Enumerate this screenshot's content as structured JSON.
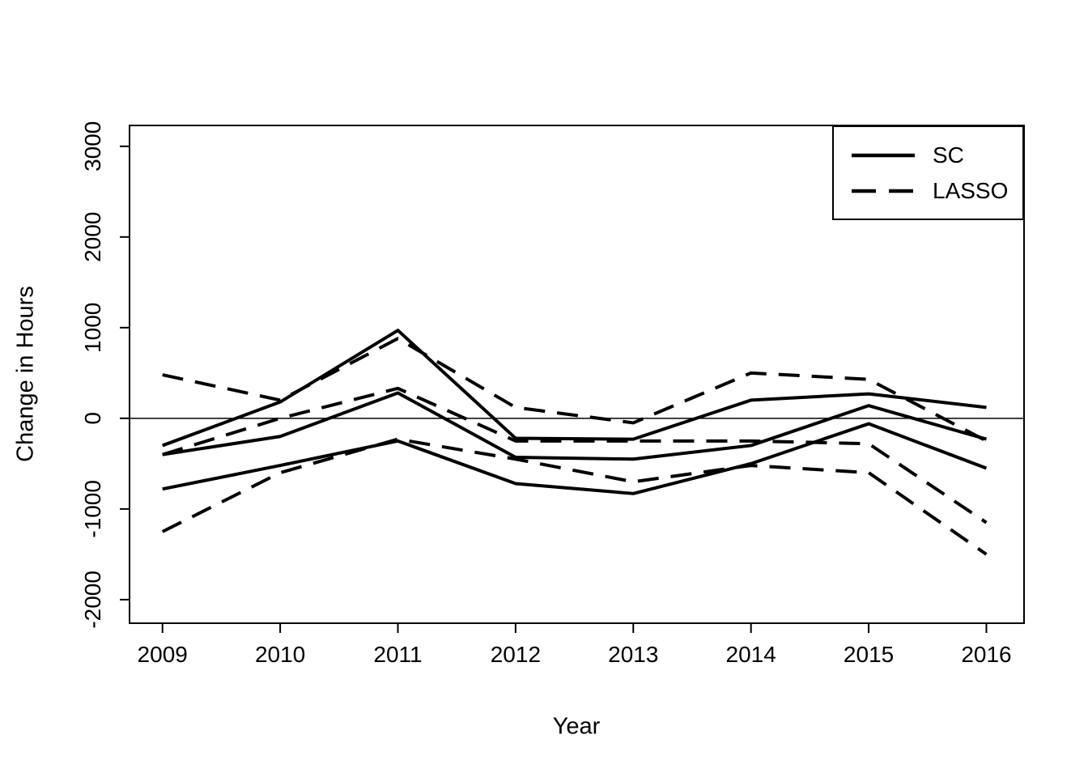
{
  "chart_data": {
    "type": "line",
    "title": "",
    "xlabel": "Year",
    "ylabel": "Change in Hours",
    "x": [
      2009,
      2010,
      2011,
      2012,
      2013,
      2014,
      2015,
      2016
    ],
    "xlim": [
      2008.72,
      2016.32
    ],
    "ylim": [
      -2260,
      3230
    ],
    "yticks": [
      -2000,
      -1000,
      0,
      1000,
      2000,
      3000
    ],
    "reference_line_y": 0,
    "grid": false,
    "legend": {
      "position": "top-right",
      "items": [
        {
          "label": "SC",
          "style": "solid"
        },
        {
          "label": "LASSO",
          "style": "dashed"
        }
      ]
    },
    "colors": {
      "line": "#000000",
      "background": "#ffffff"
    },
    "series": [
      {
        "name": "SC upper",
        "group": "SC",
        "style": "solid",
        "values": [
          -300,
          180,
          970,
          -220,
          -230,
          200,
          270,
          120
        ]
      },
      {
        "name": "SC estimate",
        "group": "SC",
        "style": "solid",
        "values": [
          -400,
          -200,
          280,
          -430,
          -450,
          -300,
          140,
          -230
        ]
      },
      {
        "name": "SC lower",
        "group": "SC",
        "style": "solid",
        "values": [
          -780,
          -520,
          -250,
          -720,
          -830,
          -500,
          -60,
          -550
        ]
      },
      {
        "name": "LASSO upper",
        "group": "LASSO",
        "style": "dashed",
        "values": [
          480,
          200,
          880,
          120,
          -50,
          500,
          430,
          -250
        ]
      },
      {
        "name": "LASSO estimate",
        "group": "LASSO",
        "style": "dashed",
        "values": [
          -400,
          0,
          330,
          -250,
          -250,
          -250,
          -280,
          -1150
        ]
      },
      {
        "name": "LASSO lower",
        "group": "LASSO",
        "style": "dashed",
        "values": [
          -1250,
          -600,
          -230,
          -450,
          -700,
          -520,
          -600,
          -1500
        ]
      }
    ]
  }
}
